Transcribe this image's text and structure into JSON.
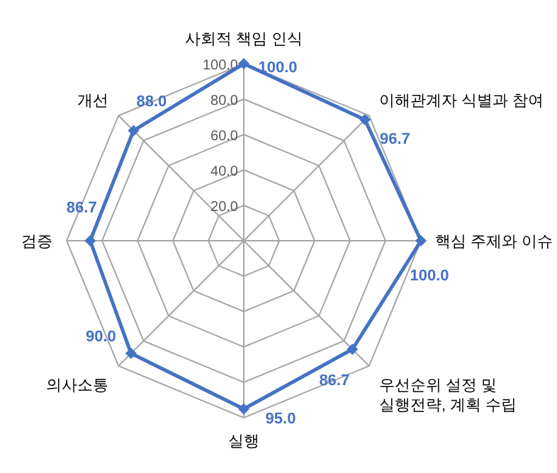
{
  "chart_data": {
    "type": "radar",
    "categories": [
      "사회적 책임 인식",
      "이해관계자 식별과 참여",
      "핵심 주제와 이슈",
      "우선순위 설정 및\n실행전략, 계획 수립",
      "실행",
      "의사소통",
      "검증",
      "개선"
    ],
    "series": [
      {
        "color": "#4472c4",
        "values": [
          100.0,
          96.7,
          100.0,
          86.7,
          95.0,
          90.0,
          86.7,
          88.0
        ],
        "value_labels": [
          "100.0",
          "96.7",
          "100.0",
          "86.7",
          "95.0",
          "90.0",
          "86.7",
          "88.0"
        ]
      }
    ],
    "ylim": [
      0,
      100
    ],
    "yticks": [
      {
        "value": 20,
        "label": "20.0"
      },
      {
        "value": 40,
        "label": "40.0"
      },
      {
        "value": 60,
        "label": "60.0"
      },
      {
        "value": 80,
        "label": "80.0"
      },
      {
        "value": 100,
        "label": "100.0"
      }
    ],
    "grid": true,
    "marker": "diamond",
    "line_style": "solid"
  }
}
